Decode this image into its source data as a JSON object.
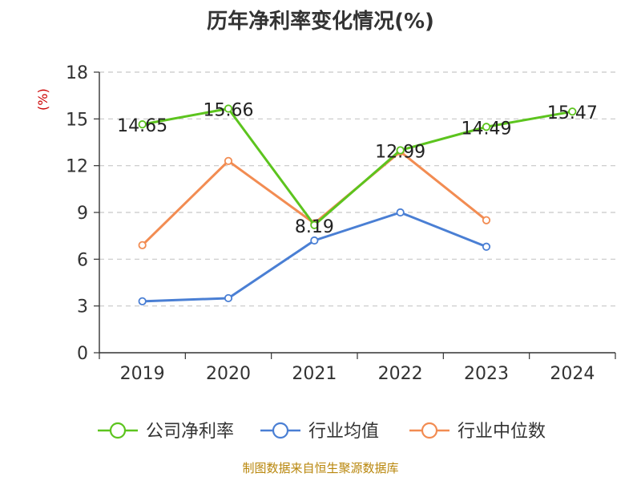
{
  "chart_data": {
    "type": "line",
    "title": "历年净利率变化情况(%)",
    "unit": "(%)",
    "categories": [
      "2019",
      "2020",
      "2021",
      "2022",
      "2023",
      "2024"
    ],
    "ylim": [
      0,
      18
    ],
    "yticks": [
      0,
      3,
      6,
      9,
      12,
      15,
      18
    ],
    "grid": true,
    "legend_position": "bottom",
    "series": [
      {
        "name": "公司净利率",
        "color": "#5cc41e",
        "values": [
          14.65,
          15.66,
          8.19,
          12.99,
          14.49,
          15.47
        ],
        "labels": [
          "14.65",
          "15.66",
          "8.19",
          "12.99",
          "14.49",
          "15.47"
        ]
      },
      {
        "name": "行业均值",
        "color": "#4a7fd4",
        "values": [
          3.3,
          3.5,
          7.2,
          9.0,
          6.8,
          null
        ]
      },
      {
        "name": "行业中位数",
        "color": "#f28c52",
        "values": [
          6.9,
          12.3,
          8.3,
          12.9,
          8.5,
          null
        ]
      }
    ]
  },
  "footer": {
    "source": "制图数据来自恒生聚源数据库"
  }
}
